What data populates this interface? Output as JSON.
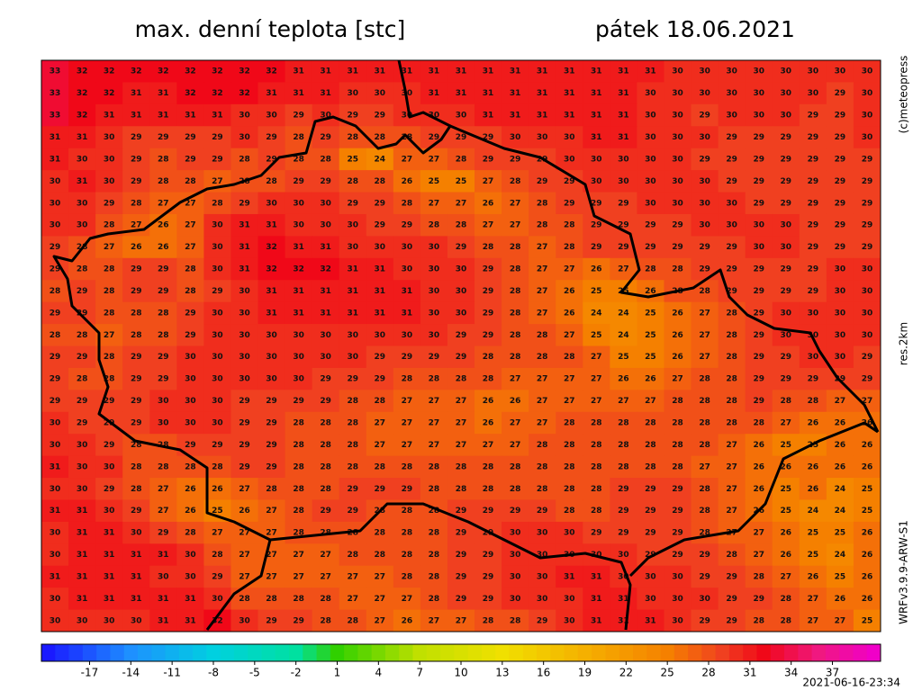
{
  "header": {
    "title": "max. denní teplota [stc]",
    "date": "pátek 18.06.2021"
  },
  "side_labels": {
    "copyright": "(c)meteopress",
    "resolution": "res.2km",
    "model": "WRFv3.9.9-ARW-S1"
  },
  "timestamp": "2021-06-16-23:34",
  "map": {
    "color_stops": [
      [
        -20,
        "#1a1aff"
      ],
      [
        -14,
        "#1e90ff"
      ],
      [
        -8,
        "#00d0e0"
      ],
      [
        -2,
        "#00e0a0"
      ],
      [
        1,
        "#30d000"
      ],
      [
        7,
        "#c0e000"
      ],
      [
        13,
        "#f0e000"
      ],
      [
        19,
        "#f5b000"
      ],
      [
        25,
        "#f58000"
      ],
      [
        29,
        "#f04020"
      ],
      [
        32,
        "#f00818"
      ],
      [
        36,
        "#f01880"
      ],
      [
        40,
        "#f000c8"
      ]
    ],
    "values": [
      [
        33,
        32,
        32,
        32,
        32,
        32,
        32,
        32,
        32,
        31,
        31,
        31,
        31,
        31,
        31,
        31,
        31,
        31,
        31,
        31,
        31,
        31,
        31,
        30,
        30,
        30,
        30,
        30,
        30,
        30,
        30
      ],
      [
        33,
        32,
        32,
        31,
        31,
        32,
        32,
        32,
        31,
        31,
        31,
        30,
        30,
        30,
        31,
        31,
        31,
        31,
        31,
        31,
        31,
        31,
        30,
        30,
        30,
        30,
        30,
        30,
        30,
        29,
        30
      ],
      [
        33,
        32,
        31,
        31,
        31,
        31,
        31,
        30,
        30,
        29,
        30,
        29,
        29,
        30,
        30,
        30,
        31,
        31,
        31,
        31,
        31,
        31,
        30,
        30,
        29,
        30,
        30,
        30,
        29,
        29,
        30
      ],
      [
        31,
        31,
        30,
        29,
        29,
        29,
        29,
        30,
        29,
        28,
        29,
        28,
        28,
        28,
        29,
        29,
        29,
        30,
        30,
        30,
        31,
        31,
        30,
        30,
        30,
        29,
        29,
        29,
        29,
        29,
        30
      ],
      [
        31,
        30,
        30,
        29,
        28,
        29,
        29,
        28,
        29,
        28,
        28,
        25,
        24,
        27,
        27,
        28,
        29,
        29,
        29,
        30,
        30,
        30,
        30,
        30,
        29,
        29,
        29,
        29,
        29,
        29,
        29
      ],
      [
        30,
        31,
        30,
        29,
        28,
        28,
        27,
        28,
        28,
        29,
        29,
        28,
        28,
        26,
        25,
        25,
        27,
        28,
        29,
        29,
        30,
        30,
        30,
        30,
        30,
        29,
        29,
        29,
        29,
        29,
        29
      ],
      [
        30,
        30,
        29,
        28,
        27,
        27,
        28,
        29,
        30,
        30,
        30,
        29,
        29,
        28,
        27,
        27,
        26,
        27,
        28,
        29,
        29,
        29,
        30,
        30,
        30,
        30,
        29,
        29,
        29,
        29,
        29
      ],
      [
        30,
        30,
        28,
        27,
        26,
        27,
        30,
        31,
        31,
        30,
        30,
        30,
        29,
        29,
        28,
        28,
        27,
        27,
        28,
        28,
        29,
        29,
        29,
        29,
        30,
        30,
        30,
        30,
        29,
        29,
        29
      ],
      [
        29,
        28,
        27,
        26,
        26,
        27,
        30,
        31,
        32,
        31,
        31,
        30,
        30,
        30,
        30,
        29,
        28,
        28,
        27,
        28,
        29,
        29,
        29,
        29,
        29,
        29,
        30,
        30,
        29,
        29,
        29
      ],
      [
        29,
        28,
        28,
        29,
        29,
        28,
        30,
        31,
        32,
        32,
        32,
        31,
        31,
        30,
        30,
        30,
        29,
        28,
        27,
        27,
        26,
        27,
        28,
        28,
        29,
        29,
        29,
        29,
        29,
        30,
        30
      ],
      [
        28,
        29,
        28,
        29,
        29,
        28,
        29,
        30,
        31,
        31,
        31,
        31,
        31,
        31,
        30,
        30,
        29,
        28,
        27,
        26,
        25,
        25,
        26,
        28,
        28,
        29,
        29,
        29,
        29,
        30,
        30
      ],
      [
        29,
        29,
        28,
        28,
        28,
        29,
        30,
        30,
        31,
        31,
        31,
        31,
        31,
        31,
        30,
        30,
        29,
        28,
        27,
        26,
        24,
        24,
        25,
        26,
        27,
        28,
        29,
        30,
        30,
        30,
        30
      ],
      [
        28,
        28,
        27,
        28,
        28,
        29,
        30,
        30,
        30,
        30,
        30,
        30,
        30,
        30,
        30,
        29,
        29,
        28,
        28,
        27,
        25,
        24,
        25,
        26,
        27,
        28,
        29,
        30,
        30,
        30,
        30
      ],
      [
        29,
        29,
        28,
        29,
        29,
        30,
        30,
        30,
        30,
        30,
        30,
        30,
        29,
        29,
        29,
        29,
        28,
        28,
        28,
        28,
        27,
        25,
        25,
        26,
        27,
        28,
        29,
        29,
        30,
        30,
        29
      ],
      [
        29,
        28,
        28,
        29,
        29,
        30,
        30,
        30,
        30,
        30,
        29,
        29,
        29,
        28,
        28,
        28,
        28,
        27,
        27,
        27,
        27,
        26,
        26,
        27,
        28,
        28,
        29,
        29,
        29,
        29,
        29
      ],
      [
        29,
        29,
        29,
        29,
        30,
        30,
        30,
        29,
        29,
        29,
        29,
        28,
        28,
        27,
        27,
        27,
        26,
        26,
        27,
        27,
        27,
        27,
        27,
        28,
        28,
        28,
        29,
        28,
        28,
        27,
        27
      ],
      [
        30,
        29,
        29,
        29,
        30,
        30,
        30,
        29,
        29,
        28,
        28,
        28,
        27,
        27,
        27,
        27,
        26,
        27,
        27,
        28,
        28,
        28,
        28,
        28,
        28,
        28,
        28,
        27,
        26,
        26,
        26
      ],
      [
        30,
        30,
        29,
        28,
        28,
        29,
        29,
        29,
        29,
        28,
        28,
        28,
        27,
        27,
        27,
        27,
        27,
        27,
        28,
        28,
        28,
        28,
        28,
        28,
        28,
        27,
        26,
        25,
        25,
        26,
        26
      ],
      [
        31,
        30,
        30,
        28,
        28,
        28,
        28,
        29,
        29,
        28,
        28,
        28,
        28,
        28,
        28,
        28,
        28,
        28,
        28,
        28,
        28,
        28,
        28,
        28,
        27,
        27,
        26,
        26,
        26,
        26,
        26
      ],
      [
        30,
        30,
        29,
        28,
        27,
        26,
        26,
        27,
        28,
        28,
        28,
        29,
        29,
        29,
        28,
        28,
        28,
        28,
        28,
        28,
        28,
        29,
        29,
        29,
        28,
        27,
        26,
        25,
        26,
        24,
        25
      ],
      [
        31,
        31,
        30,
        29,
        27,
        26,
        25,
        26,
        27,
        28,
        29,
        29,
        28,
        28,
        28,
        29,
        29,
        29,
        29,
        28,
        28,
        29,
        29,
        29,
        28,
        27,
        26,
        25,
        24,
        24,
        25
      ],
      [
        30,
        31,
        31,
        30,
        29,
        28,
        27,
        27,
        27,
        28,
        28,
        28,
        28,
        28,
        28,
        29,
        29,
        30,
        30,
        30,
        29,
        29,
        29,
        29,
        28,
        27,
        27,
        26,
        25,
        25,
        26
      ],
      [
        30,
        31,
        31,
        31,
        31,
        30,
        28,
        27,
        27,
        27,
        27,
        28,
        28,
        28,
        28,
        29,
        29,
        30,
        30,
        30,
        30,
        30,
        29,
        29,
        29,
        28,
        27,
        26,
        25,
        24,
        26
      ],
      [
        31,
        31,
        31,
        31,
        30,
        30,
        29,
        27,
        27,
        27,
        27,
        27,
        27,
        28,
        28,
        29,
        29,
        30,
        30,
        31,
        31,
        30,
        30,
        30,
        29,
        29,
        28,
        27,
        26,
        25,
        26
      ],
      [
        30,
        31,
        31,
        31,
        31,
        31,
        30,
        28,
        28,
        28,
        28,
        27,
        27,
        27,
        28,
        29,
        29,
        30,
        30,
        30,
        31,
        31,
        30,
        30,
        30,
        29,
        29,
        28,
        27,
        26,
        26
      ],
      [
        30,
        30,
        30,
        30,
        31,
        31,
        32,
        30,
        29,
        29,
        28,
        28,
        27,
        26,
        27,
        27,
        28,
        28,
        29,
        30,
        31,
        31,
        31,
        30,
        29,
        29,
        28,
        28,
        27,
        27,
        25
      ]
    ]
  },
  "colorbar": {
    "lim": [
      -20.5,
      40.5
    ],
    "ticks": [
      -17,
      -14,
      -11,
      -8,
      -5,
      -2,
      1,
      4,
      7,
      10,
      13,
      16,
      19,
      22,
      25,
      28,
      31,
      34,
      37
    ]
  }
}
